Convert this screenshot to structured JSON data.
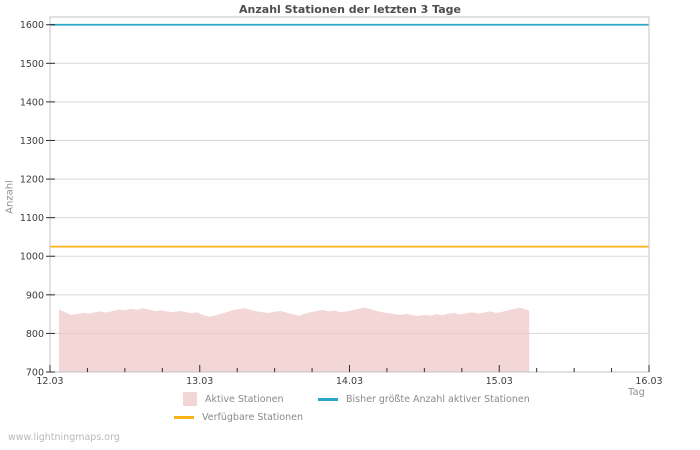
{
  "watermark": "www.lightningmaps.org",
  "chart_data": {
    "type": "area",
    "title": "Anzahl Stationen der letzten 3 Tage",
    "xlabel": "Tag",
    "ylabel": "Anzahl",
    "xlim": [
      0,
      4
    ],
    "ylim": [
      700,
      1620
    ],
    "x_tick_labels": [
      "12.03",
      "13.03",
      "14.03",
      "15.03",
      "16.03"
    ],
    "x_tick_positions": [
      0,
      1,
      2,
      3,
      4
    ],
    "x_minor_step": 0.25,
    "yticks": [
      700,
      800,
      900,
      1000,
      1100,
      1200,
      1300,
      1400,
      1500,
      1600
    ],
    "grid": "horizontal",
    "legend_position": "bottom",
    "colors": {
      "grid": "#d9d9d9",
      "frame": "#c3c3c3",
      "tick": "#2e2e2e",
      "tick_label": "#3d3d3d",
      "title": "#4d4d4d",
      "axis_label": "#929292",
      "legend_text": "#8a8a8a",
      "watermark": "#b9b9b9"
    },
    "series": [
      {
        "name": "Aktive Stationen",
        "type": "area",
        "color": "#eec4c4",
        "legend_color": "#f2d6d6",
        "fill_opacity": 0.7,
        "x_unit": "days_after_12.03",
        "x": [
          0.06,
          0.1,
          0.14,
          0.18,
          0.22,
          0.26,
          0.3,
          0.34,
          0.38,
          0.42,
          0.46,
          0.5,
          0.54,
          0.58,
          0.62,
          0.66,
          0.7,
          0.74,
          0.78,
          0.82,
          0.86,
          0.9,
          0.94,
          0.98,
          1.02,
          1.06,
          1.1,
          1.14,
          1.18,
          1.22,
          1.26,
          1.3,
          1.34,
          1.38,
          1.42,
          1.46,
          1.5,
          1.54,
          1.58,
          1.62,
          1.66,
          1.7,
          1.74,
          1.78,
          1.82,
          1.86,
          1.9,
          1.94,
          1.98,
          2.02,
          2.06,
          2.1,
          2.14,
          2.18,
          2.22,
          2.26,
          2.3,
          2.34,
          2.38,
          2.42,
          2.46,
          2.5,
          2.54,
          2.58,
          2.62,
          2.66,
          2.7,
          2.74,
          2.78,
          2.82,
          2.86,
          2.9,
          2.94,
          2.98,
          3.02,
          3.06,
          3.1,
          3.14,
          3.18,
          3.2
        ],
        "values": [
          862,
          855,
          848,
          850,
          853,
          851,
          855,
          857,
          854,
          858,
          862,
          860,
          864,
          861,
          865,
          862,
          858,
          860,
          857,
          855,
          858,
          856,
          852,
          855,
          848,
          843,
          846,
          851,
          855,
          860,
          863,
          865,
          861,
          857,
          855,
          853,
          856,
          858,
          854,
          850,
          846,
          851,
          855,
          858,
          861,
          857,
          859,
          855,
          857,
          860,
          864,
          867,
          863,
          858,
          855,
          852,
          850,
          848,
          851,
          847,
          845,
          848,
          846,
          850,
          847,
          851,
          853,
          849,
          852,
          855,
          851,
          854,
          857,
          853,
          856,
          860,
          864,
          866,
          862,
          858
        ]
      },
      {
        "name": "Bisher größte Anzahl aktiver Stationen",
        "type": "line",
        "color": "#2aa7c5",
        "value": 1600
      },
      {
        "name": "Verfügbare Stationen",
        "type": "line",
        "color": "#fcb316",
        "value": 1025
      }
    ]
  }
}
